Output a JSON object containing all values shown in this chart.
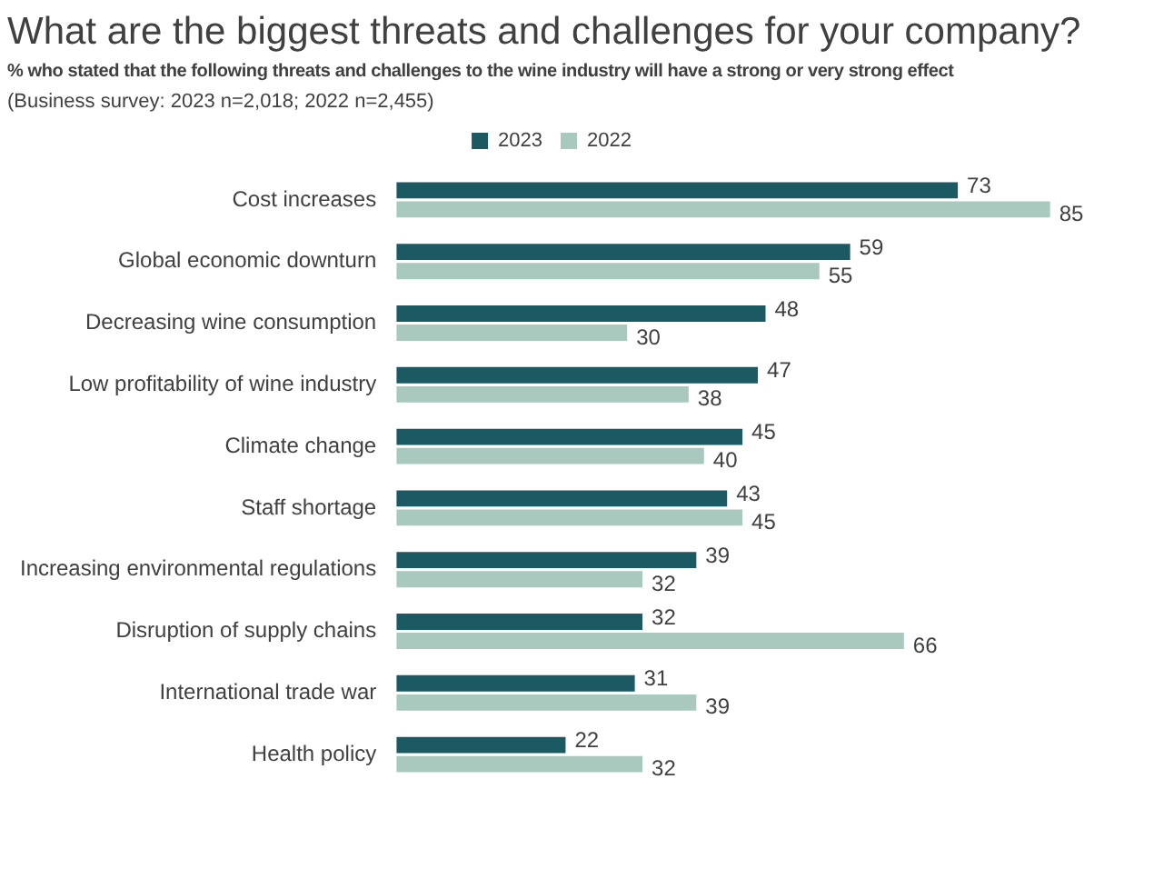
{
  "chart_data": {
    "type": "bar",
    "orientation": "horizontal",
    "title": "What are the biggest threats and challenges for your company?",
    "subtitle": "% who stated that the following threats and challenges to the wine industry will have a strong or very strong effect",
    "annotations": [
      "(Business survey: 2023 n=2,018; 2022 n=2,455)"
    ],
    "categories": [
      "Cost increases",
      "Global economic downturn",
      "Decreasing wine consumption",
      "Low profitability of wine industry",
      "Climate change",
      "Staff shortage",
      "Increasing environmental regulations",
      "Disruption of supply chains",
      "International trade war",
      "Health policy"
    ],
    "series": [
      {
        "name": "2023",
        "color": "#1b5a63",
        "values": [
          73,
          59,
          48,
          47,
          45,
          43,
          39,
          32,
          31,
          22
        ]
      },
      {
        "name": "2022",
        "color": "#a9c9bf",
        "values": [
          85,
          55,
          30,
          38,
          40,
          45,
          32,
          66,
          39,
          32
        ]
      }
    ],
    "data_labels": true,
    "legend": "top"
  }
}
